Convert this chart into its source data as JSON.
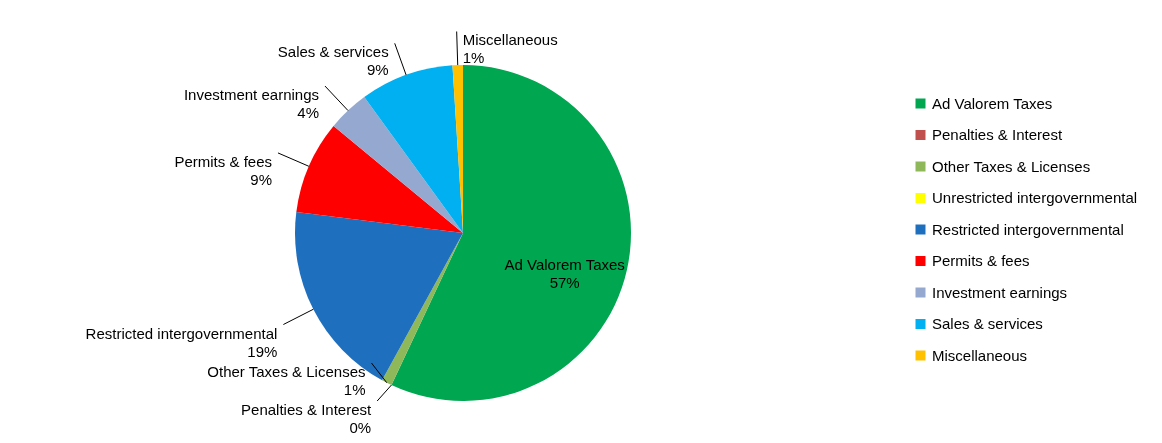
{
  "chart_data": {
    "type": "pie",
    "categories": [
      "Ad Valorem Taxes",
      "Penalties & Interest",
      "Other Taxes & Licenses",
      "Unrestricted intergovernmental",
      "Restricted intergovernmental",
      "Permits & fees",
      "Investment earnings",
      "Sales & services",
      "Miscellaneous"
    ],
    "values": [
      57,
      0,
      1,
      0,
      19,
      9,
      4,
      9,
      1
    ],
    "value_labels": [
      "57%",
      "0%",
      "1%",
      null,
      "19%",
      "9%",
      "4%",
      "9%",
      "1%"
    ],
    "colors": [
      "#00a650",
      "#c0504d",
      "#8fb85a",
      "#ffff00",
      "#1f6fbf",
      "#ff0000",
      "#95a9d0",
      "#00b0f0",
      "#ffc000"
    ],
    "legend": "right"
  }
}
